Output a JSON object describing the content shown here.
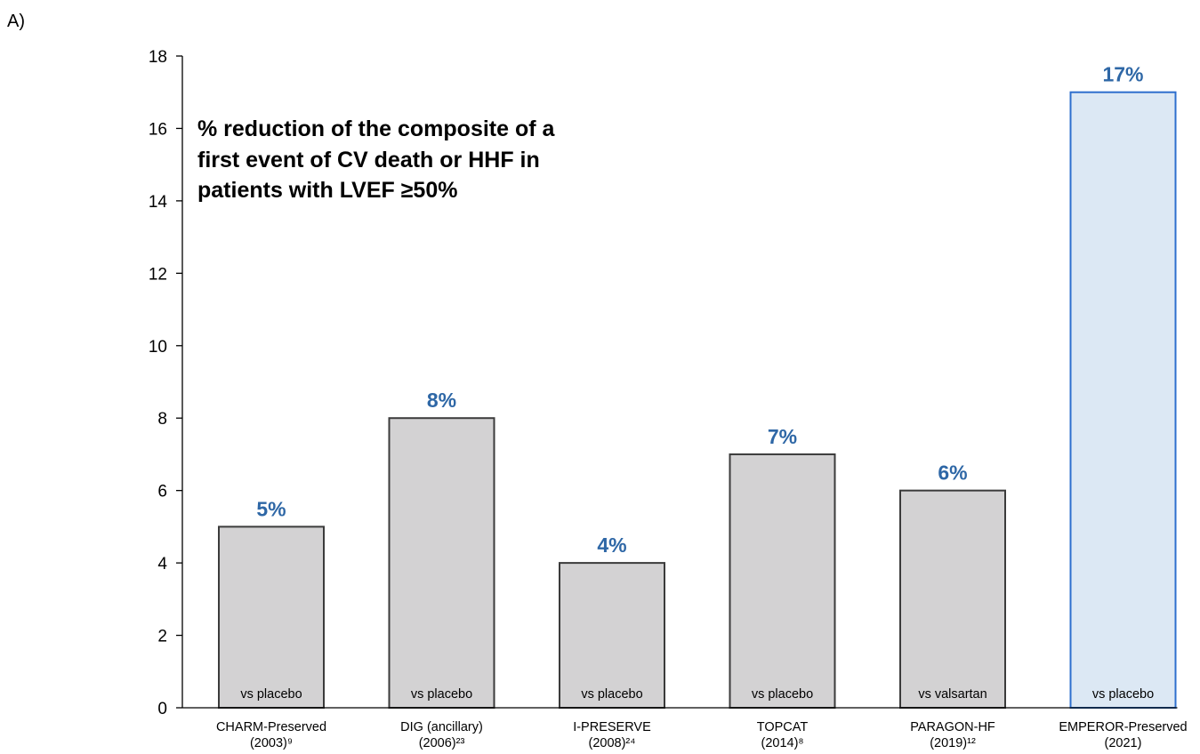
{
  "panel_label": "A)",
  "colors": {
    "bar_fill": "#d3d2d3",
    "bar_stroke": "#3b3b3b",
    "highlight_fill": "#dce8f4",
    "highlight_stroke": "#2e6fce",
    "label_blue": "#2e67a6",
    "axis": "#000000"
  },
  "chart_data": {
    "type": "bar",
    "annotation": [
      "% reduction of the composite of a",
      "first event of CV death or HHF in",
      "patients with LVEF ≥50%"
    ],
    "categories": [
      [
        "CHARM-Preserved",
        "(2003)⁹"
      ],
      [
        "DIG (ancillary)",
        "(2006)²³"
      ],
      [
        "I-PRESERVE",
        "(2008)²⁴"
      ],
      [
        "TOPCAT",
        "(2014)⁸"
      ],
      [
        "PARAGON-HF",
        "(2019)¹²"
      ],
      [
        "EMPEROR-Preserved",
        "(2021)"
      ]
    ],
    "values": [
      5,
      8,
      4,
      7,
      6,
      17
    ],
    "data_labels": [
      "5%",
      "8%",
      "4%",
      "7%",
      "6%",
      "17%"
    ],
    "bar_notes": [
      "vs placebo",
      "vs placebo",
      "vs placebo",
      "vs placebo",
      "vs valsartan",
      "vs placebo"
    ],
    "highlighted_index": 5,
    "ylim": [
      0,
      18
    ],
    "yticks": [
      0,
      2,
      4,
      6,
      8,
      10,
      12,
      14,
      16,
      18
    ],
    "grid": false,
    "legend": "none"
  }
}
